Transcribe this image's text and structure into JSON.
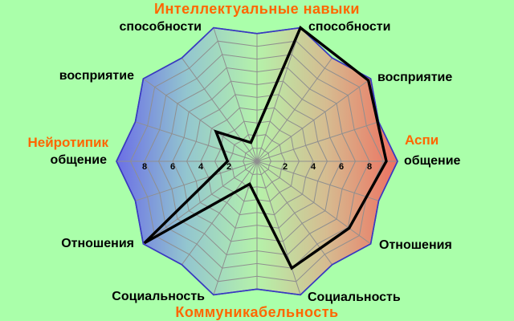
{
  "titles": {
    "top": "Интеллектуальные навыки",
    "bottom": "Коммуникабельность"
  },
  "legend": {
    "left": "Нейротипик",
    "right": "Аспи"
  },
  "colors": {
    "background": "#aaffaa",
    "accent": "#ff6600",
    "text": "#000000",
    "grid": "#8f8f8f",
    "border": "#3a3ac0",
    "data_line": "#000000",
    "gradient": [
      "#6b6fe6",
      "#93c6cf",
      "#b5f2aa",
      "#d6bb90",
      "#ee7060"
    ]
  },
  "chart_data": {
    "type": "radar",
    "rings": 10,
    "max_value": 10,
    "axes": [
      {
        "label": "общение",
        "side": "right",
        "angle_deg": 0,
        "value": 9.2
      },
      {
        "label": "восприятие",
        "side": "right",
        "angle_deg": 36,
        "value": 9.8
      },
      {
        "label": "способности",
        "side": "right",
        "angle_deg": 72,
        "value": 10
      },
      {
        "label": "способности",
        "side": "left",
        "angle_deg": 108,
        "value": 1.4
      },
      {
        "label": "восприятие",
        "side": "left",
        "angle_deg": 144,
        "value": 3.6
      },
      {
        "label": "общение",
        "side": "left",
        "angle_deg": 180,
        "value": 2.1
      },
      {
        "label": "Отношения",
        "side": "left",
        "angle_deg": 216,
        "value": 9.9
      },
      {
        "label": "Социальность",
        "side": "left",
        "angle_deg": 252,
        "value": 1.7
      },
      {
        "label": "Социальность",
        "side": "right",
        "angle_deg": 288,
        "value": 8.0
      },
      {
        "label": "Отношения",
        "side": "right",
        "angle_deg": 324,
        "value": 8.1
      }
    ],
    "tick_values_left": [
      "8",
      "6",
      "4",
      "2"
    ],
    "tick_values_right": [
      "2",
      "4",
      "6",
      "8"
    ]
  }
}
